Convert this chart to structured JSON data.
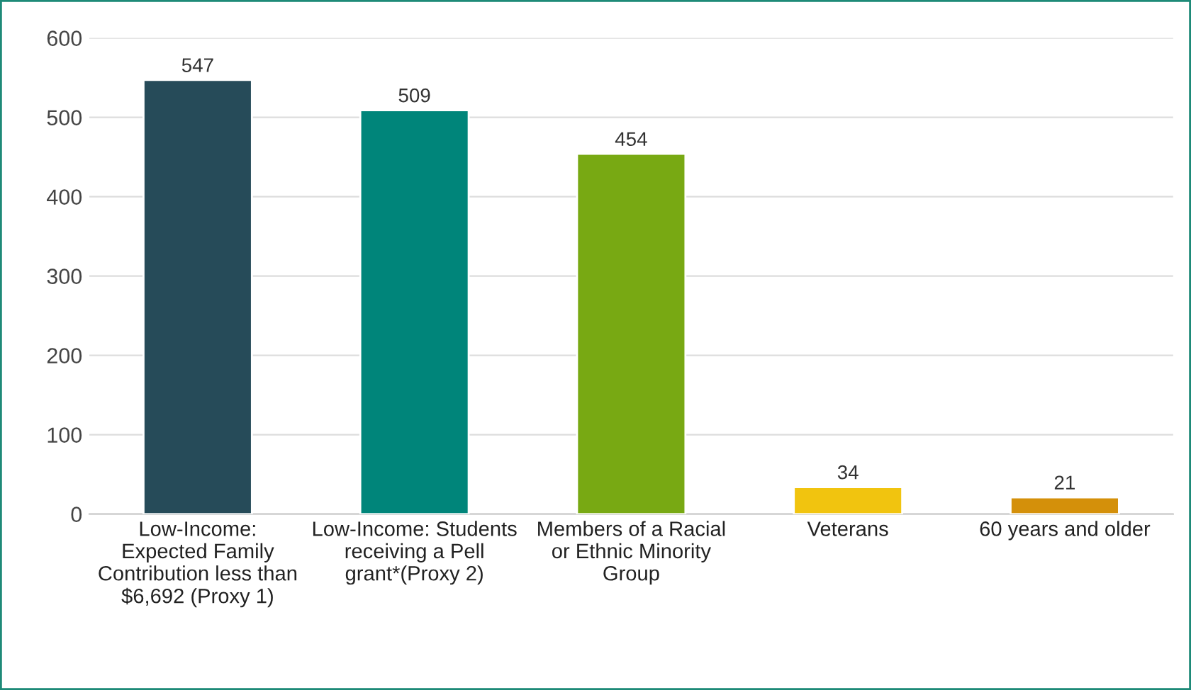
{
  "chart_data": {
    "type": "bar",
    "categories": [
      "Low-Income:\nExpected Family\nContribution less than\n$6,692 (Proxy 1)",
      "Low-Income: Students\nreceiving a Pell\ngrant*(Proxy 2)",
      "Members of a Racial\nor Ethnic Minority\nGroup",
      "Veterans",
      "60 years and older"
    ],
    "values": [
      547,
      509,
      454,
      34,
      21
    ],
    "colors": [
      "#264b59",
      "#00857a",
      "#78a913",
      "#f1c40f",
      "#d4900a"
    ],
    "ylim": [
      0,
      600
    ],
    "yticks": [
      0,
      100,
      200,
      300,
      400,
      500,
      600
    ],
    "grid": "y",
    "data_labels": true
  }
}
